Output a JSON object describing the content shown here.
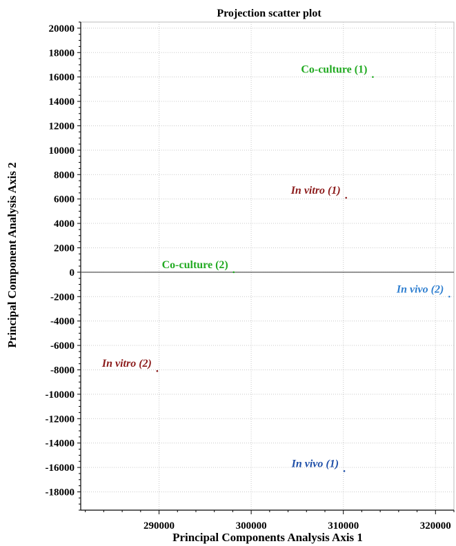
{
  "chart_data": {
    "type": "scatter",
    "title": "Projection scatter plot",
    "xlabel": "Principal Components Analysis Axis 1",
    "ylabel": "Principal Component Analysis Axis 2",
    "xlim": [
      281500,
      322000
    ],
    "ylim": [
      -19500,
      20500
    ],
    "x_ticks": [
      "290000",
      "300000",
      "310000",
      "320000"
    ],
    "y_ticks": [
      "20000",
      "18000",
      "16000",
      "14000",
      "12000",
      "10000",
      "8000",
      "6000",
      "4000",
      "2000",
      "0",
      "-2000",
      "-4000",
      "-6000",
      "-8000",
      "-10000",
      "-12000",
      "-14000",
      "-16000",
      "-18000"
    ],
    "grid": true,
    "zero_line": true,
    "points": [
      {
        "label": "Co-culture (1)",
        "italic": false,
        "color": "#22aa22",
        "x": 313200,
        "y": 16000
      },
      {
        "label": "In vitro (1)",
        "italic": true,
        "color": "#8b1a1a",
        "x": 310300,
        "y": 6100
      },
      {
        "label": "Co-culture (2)",
        "italic": false,
        "color": "#22aa22",
        "x": 298100,
        "y": 0
      },
      {
        "label": "In vivo (2)",
        "italic": true,
        "color": "#2f7fd0",
        "x": 321500,
        "y": -2000
      },
      {
        "label": "In vitro (2)",
        "italic": true,
        "color": "#8b1a1a",
        "x": 289800,
        "y": -8100
      },
      {
        "label": "In vivo (1)",
        "italic": true,
        "color": "#1f4fa8",
        "x": 310100,
        "y": -16300
      }
    ]
  }
}
